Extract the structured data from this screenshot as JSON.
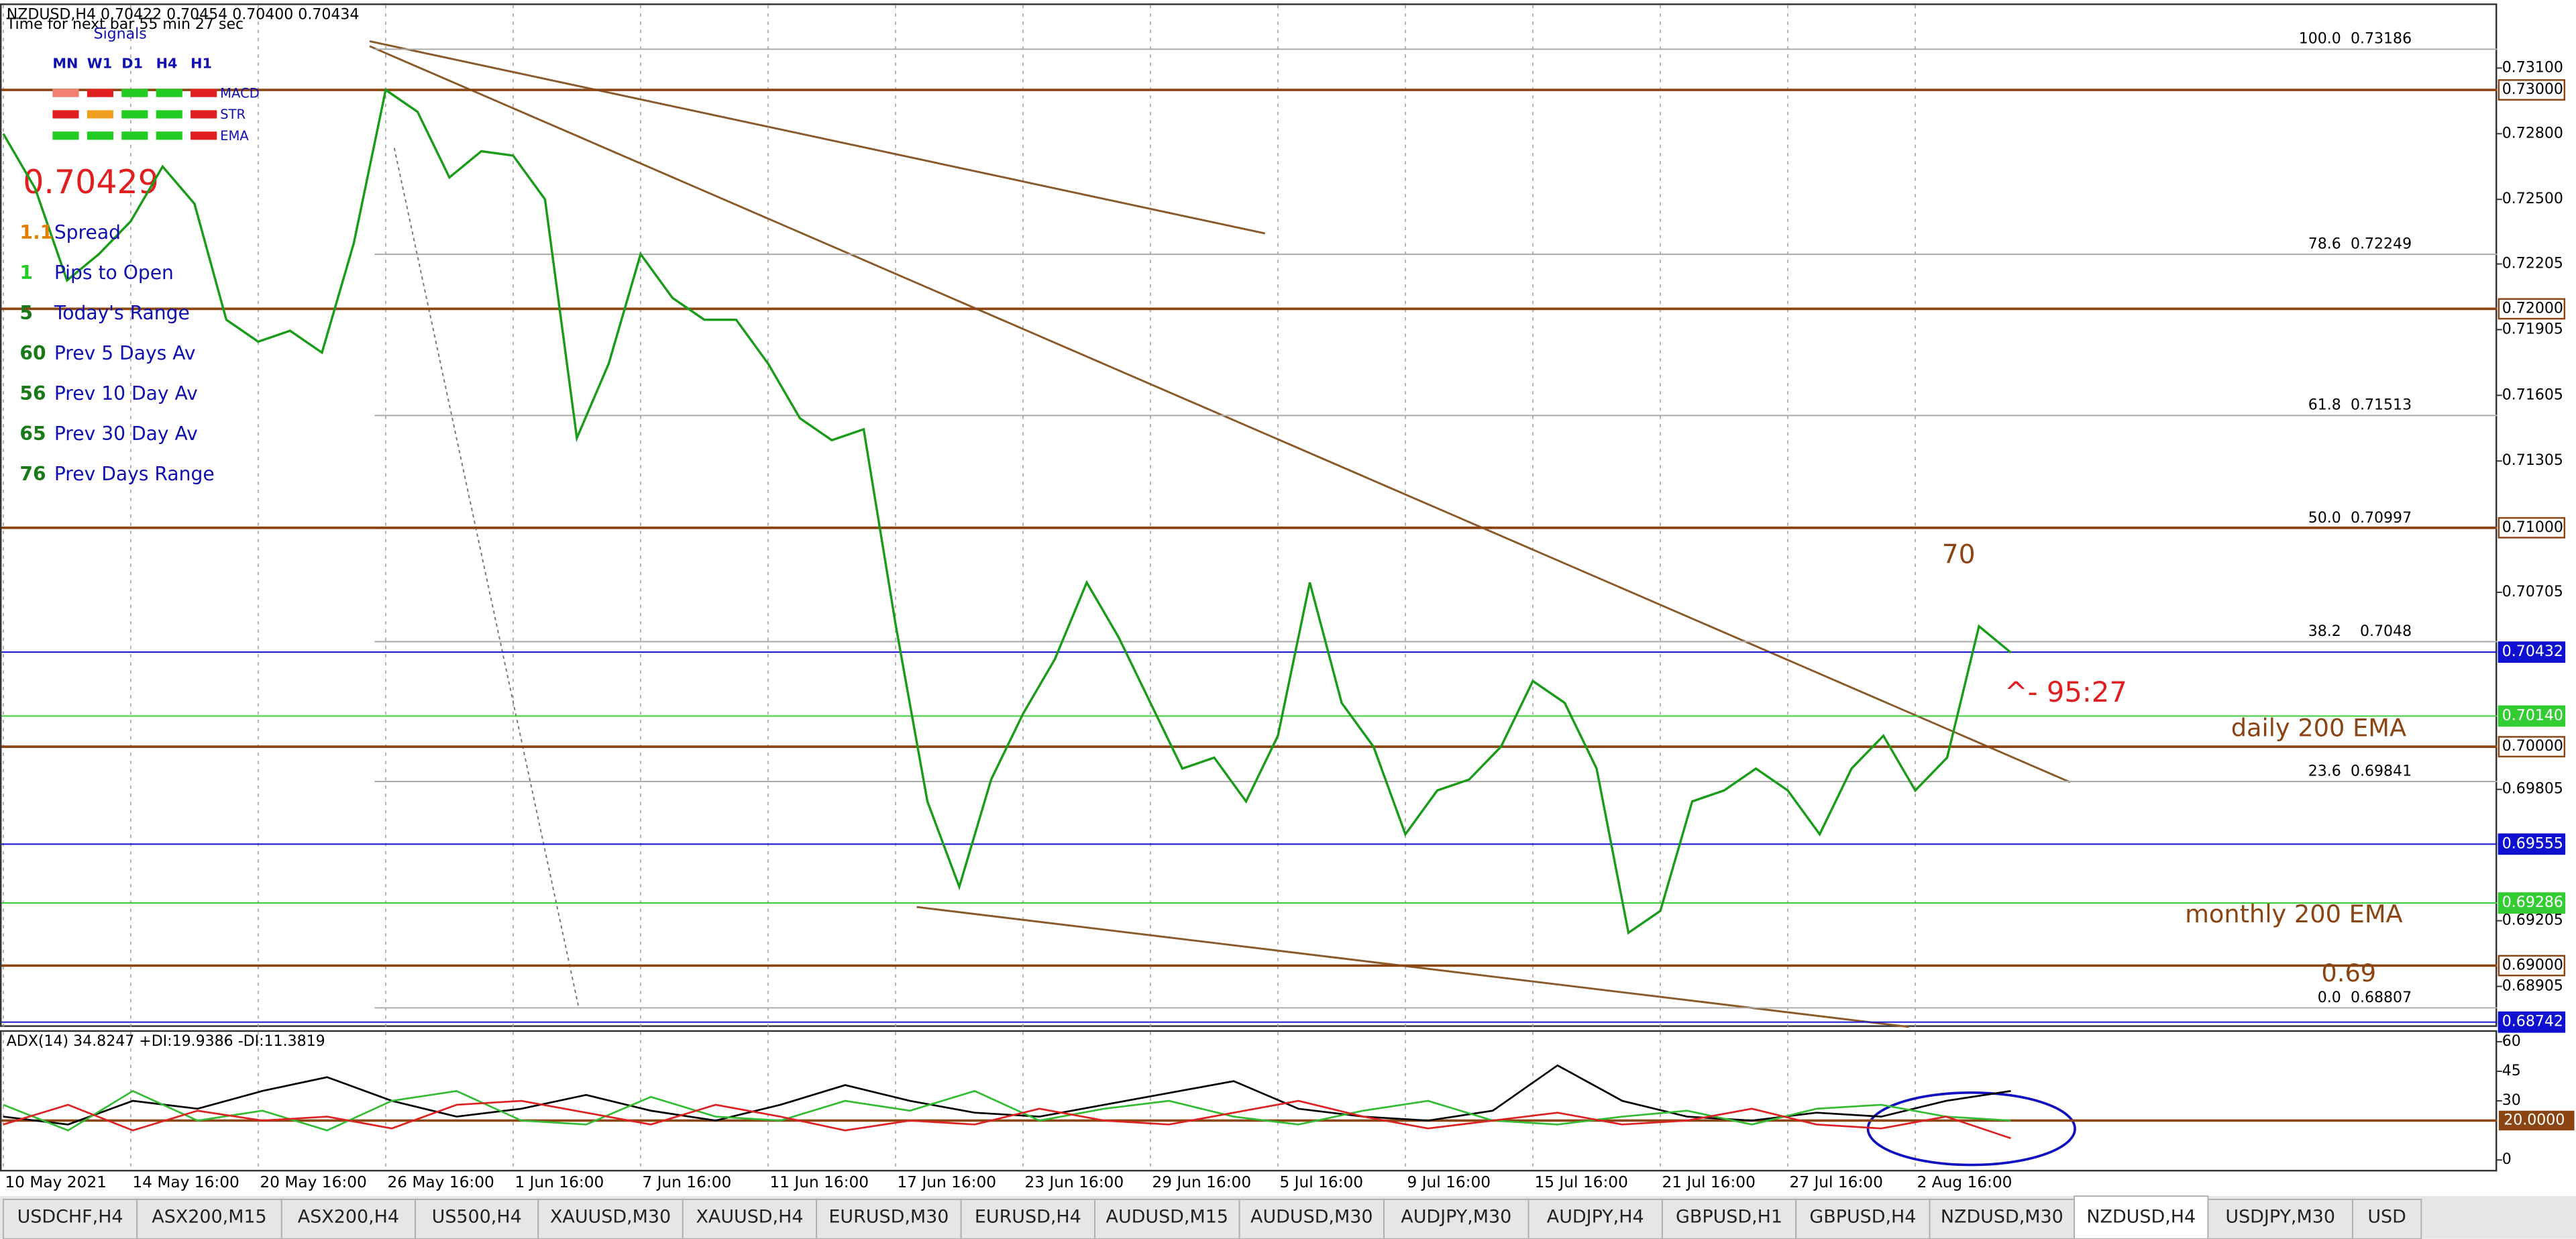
{
  "header": {
    "symbol_line": "NZDUSD,H4  0.70422 0.70454 0.70400 0.70434",
    "timer": "Time for next bar 55 min 27 sec",
    "big_price": "0.70429"
  },
  "signals": {
    "title": "Signals",
    "columns": [
      "MN",
      "W1",
      "D1",
      "H4",
      "H1"
    ],
    "rows": [
      {
        "name": "MACD",
        "colors": [
          "#f08070",
          "#e02020",
          "#22cc22",
          "#22cc22",
          "#e02020"
        ]
      },
      {
        "name": "STR",
        "colors": [
          "#e02020",
          "#f0a020",
          "#22cc22",
          "#22cc22",
          "#e02020"
        ]
      },
      {
        "name": "EMA",
        "colors": [
          "#22cc22",
          "#22cc22",
          "#22cc22",
          "#22cc22",
          "#e02020"
        ]
      }
    ]
  },
  "stats": [
    {
      "value": 1.1,
      "label": "Spread",
      "color": "#e08000"
    },
    {
      "value": 1,
      "label": "Pips to Open",
      "color": "#22cc22"
    },
    {
      "value": 5,
      "label": "Today's Range",
      "color": "#1a7a1a"
    },
    {
      "value": 60,
      "label": "Prev 5 Days Av",
      "color": "#1a7a1a"
    },
    {
      "value": 56,
      "label": "Prev 10 Day Av",
      "color": "#1a7a1a"
    },
    {
      "value": 65,
      "label": "Prev 30 Day Av",
      "color": "#1a7a1a"
    },
    {
      "value": 76,
      "label": "Prev Days Range",
      "color": "#1a7a1a"
    }
  ],
  "chart_data": {
    "type": "line",
    "color": "#1a9c1a",
    "categories": [
      "10 May 2021",
      null,
      null,
      null,
      "14 May 16:00",
      null,
      null,
      null,
      "20 May 16:00",
      null,
      null,
      null,
      "26 May 16:00",
      null,
      null,
      null,
      "1 Jun 16:00",
      null,
      null,
      null,
      "7 Jun 16:00",
      null,
      null,
      null,
      "11 Jun 16:00",
      null,
      null,
      null,
      "17 Jun 16:00",
      null,
      null,
      null,
      "23 Jun 16:00",
      null,
      null,
      null,
      "29 Jun 16:00",
      null,
      null,
      null,
      "5 Jul 16:00",
      null,
      null,
      null,
      "9 Jul 16:00",
      null,
      null,
      null,
      "15 Jul 16:00",
      null,
      null,
      null,
      "21 Jul 16:00",
      null,
      null,
      null,
      "27 Jul 16:00",
      null,
      null,
      null,
      "2 Aug 16:00",
      null,
      null,
      null
    ],
    "values": [
      0.728,
      0.7255,
      0.7213,
      0.7225,
      0.724,
      0.7265,
      0.7248,
      0.7195,
      0.7185,
      0.719,
      0.718,
      0.723,
      0.73,
      0.729,
      0.726,
      0.7272,
      0.727,
      0.725,
      0.7141,
      0.7175,
      0.7225,
      0.7205,
      0.7195,
      0.7195,
      0.7175,
      0.715,
      0.714,
      0.7145,
      0.7056,
      0.6975,
      0.6936,
      0.6985,
      0.7015,
      0.704,
      0.7075,
      0.705,
      0.702,
      0.699,
      0.6995,
      0.6975,
      0.7005,
      0.7075,
      0.702,
      0.7,
      0.696,
      0.698,
      0.6985,
      0.7,
      0.703,
      0.702,
      0.699,
      0.6915,
      0.6925,
      0.6975,
      0.698,
      0.699,
      0.698,
      0.696,
      0.699,
      0.7005,
      0.698,
      0.6995,
      0.7055,
      0.7043
    ],
    "ylim": [
      0.6872,
      0.7341
    ],
    "yticks": [
      {
        "value": 0.731,
        "label": "0.73100"
      },
      {
        "value": 0.728,
        "label": "0.72800"
      },
      {
        "value": 0.725,
        "label": "0.72500"
      },
      {
        "value": 0.72205,
        "label": "0.72205"
      },
      {
        "value": 0.71905,
        "label": "0.71905"
      },
      {
        "value": 0.71605,
        "label": "0.71605"
      },
      {
        "value": 0.71305,
        "label": "0.71305"
      },
      {
        "value": 0.70705,
        "label": "0.70705"
      },
      {
        "value": 0.69805,
        "label": "0.69805"
      },
      {
        "value": 0.69205,
        "label": "0.69205"
      },
      {
        "value": 0.68905,
        "label": "0.68905"
      }
    ],
    "levels": [
      {
        "value": 0.73,
        "label": "0.73000",
        "color": "#8b4513",
        "box": "outline"
      },
      {
        "value": 0.72,
        "label": "0.72000",
        "color": "#8b4513",
        "box": "outline"
      },
      {
        "value": 0.71,
        "label": "0.71000",
        "color": "#8b4513",
        "box": "outline"
      },
      {
        "value": 0.70432,
        "label": "0.70432",
        "color": "#1010d0",
        "box": "filled"
      },
      {
        "value": 0.7014,
        "label": "0.70140",
        "color": "#33cc33",
        "box": "filled"
      },
      {
        "value": 0.7,
        "label": "0.70000",
        "color": "#8b4513",
        "box": "outline"
      },
      {
        "value": 0.69555,
        "label": "0.69555",
        "color": "#1010d0",
        "box": "filled"
      },
      {
        "value": 0.69286,
        "label": "0.69286",
        "color": "#33cc33",
        "box": "filled"
      },
      {
        "value": 0.69,
        "label": "0.69000",
        "color": "#8b4513",
        "box": "outline"
      },
      {
        "value": 0.68742,
        "label": "0.68742",
        "color": "#1010d0",
        "box": "filled"
      }
    ],
    "fibonacci": [
      {
        "level": "100.0",
        "price": 0.73186
      },
      {
        "level": "78.6",
        "price": 0.72249
      },
      {
        "level": "61.8",
        "price": 0.71513
      },
      {
        "level": "50.0",
        "price": 0.70997
      },
      {
        "level": "38.2",
        "price": 0.7048
      },
      {
        "level": "23.6",
        "price": 0.69841
      },
      {
        "level": "0.0",
        "price": 0.68807
      }
    ],
    "annotations": [
      {
        "text": "70",
        "color": "#8b4513",
        "price": 0.7087
      },
      {
        "text": "^- 95:27",
        "color": "#e02020",
        "price": 0.7024
      },
      {
        "text": "daily 200 EMA",
        "color": "#8b4513",
        "price": 0.7008
      },
      {
        "text": "monthly 200 EMA",
        "color": "#8b4513",
        "price": 0.6923
      },
      {
        "text": "0.69",
        "color": "#8b4513",
        "price": 0.6896
      }
    ]
  },
  "adx": {
    "title": "ADX(14) 34.8247 +DI:19.9386 -DI:11.3819",
    "ylim": [
      -5,
      65
    ],
    "yticks": [
      60,
      45,
      30,
      0
    ],
    "level": {
      "value": 20,
      "label": "20.0000"
    },
    "series": [
      {
        "name": "ADX",
        "color": "#000000",
        "values": [
          22,
          18,
          30,
          26,
          35,
          42,
          30,
          22,
          26,
          33,
          25,
          20,
          28,
          38,
          30,
          24,
          22,
          28,
          34,
          40,
          26,
          22,
          20,
          25,
          48,
          30,
          22,
          20,
          24,
          22,
          30,
          35
        ]
      },
      {
        "name": "+DI",
        "color": "#33bb33",
        "values": [
          28,
          15,
          35,
          20,
          25,
          15,
          30,
          35,
          20,
          18,
          32,
          22,
          20,
          30,
          25,
          35,
          20,
          26,
          30,
          22,
          18,
          25,
          30,
          20,
          18,
          22,
          25,
          18,
          26,
          28,
          22,
          20
        ]
      },
      {
        "name": "-DI",
        "color": "#dd2020",
        "values": [
          18,
          28,
          15,
          25,
          20,
          22,
          16,
          28,
          30,
          24,
          18,
          28,
          22,
          15,
          20,
          18,
          26,
          20,
          18,
          24,
          30,
          22,
          16,
          20,
          24,
          18,
          20,
          26,
          18,
          16,
          22,
          11
        ]
      }
    ]
  },
  "tabs": {
    "items": [
      "USDCHF,H4",
      "ASX200,M15",
      "ASX200,H4",
      "US500,H4",
      "XAUUSD,M30",
      "XAUUSD,H4",
      "EURUSD,M30",
      "EURUSD,H4",
      "AUDUSD,M15",
      "AUDUSD,M30",
      "AUDJPY,M30",
      "AUDJPY,H4",
      "GBPUSD,H1",
      "GBPUSD,H4",
      "NZDUSD,M30",
      "NZDUSD,H4",
      "USDJPY,M30",
      "USD"
    ],
    "active": 15
  }
}
